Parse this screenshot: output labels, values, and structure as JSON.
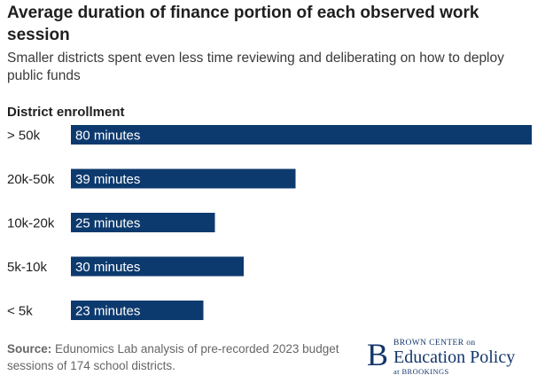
{
  "chart_data": {
    "type": "bar",
    "orientation": "horizontal",
    "title": "Average duration of finance portion of each observed work session",
    "subtitle": "Smaller districts spent even less time reviewing and deliberating on how to deploy public funds",
    "ylabel": "District enrollment",
    "xlabel": "",
    "categories": [
      "> 50k",
      "20k-50k",
      "10k-20k",
      "5k-10k",
      "< 5k"
    ],
    "values": [
      80,
      39,
      25,
      30,
      23
    ],
    "data_labels": [
      "80 minutes",
      "39 minutes",
      "25 minutes",
      "30 minutes",
      "23 minutes"
    ],
    "xlim": [
      0,
      80
    ],
    "grid": false,
    "legend": "none",
    "bar_color": "#0d3a6e",
    "label_color": "#ffffff"
  },
  "source": {
    "label": "Source:",
    "text": " Edunomics Lab analysis of pre-recorded 2023 budget sessions of 174 school districts."
  },
  "logo": {
    "letter": "B",
    "line1": "BROWN CENTER on",
    "line2": "Education Policy",
    "line3": "at BROOKINGS"
  }
}
